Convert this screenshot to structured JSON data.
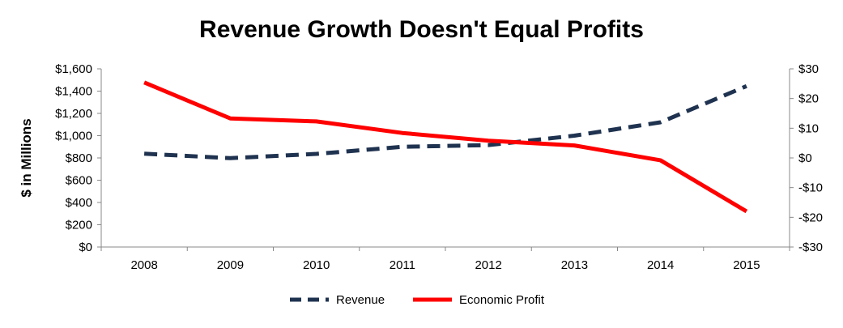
{
  "chart_data": {
    "type": "line",
    "title": "Revenue Growth Doesn't Equal Profits",
    "xlabel": "",
    "ylabel": "$ in Millions",
    "categories": [
      "2008",
      "2009",
      "2010",
      "2011",
      "2012",
      "2013",
      "2014",
      "2015"
    ],
    "y_left": {
      "ylim": [
        0,
        1600
      ],
      "ticks": [
        0,
        200,
        400,
        600,
        800,
        1000,
        1200,
        1400,
        1600
      ],
      "tick_labels": [
        "$0",
        "$200",
        "$400",
        "$600",
        "$800",
        "$1,000",
        "$1,200",
        "$1,400",
        "$1,600"
      ]
    },
    "y_right": {
      "ylim": [
        -30,
        30
      ],
      "ticks": [
        -30,
        -20,
        -10,
        0,
        10,
        20,
        30
      ],
      "tick_labels": [
        "-$30",
        "-$20",
        "-$10",
        "$0",
        "$10",
        "$20",
        "$30"
      ]
    },
    "series": [
      {
        "name": "Revenue",
        "axis": "left",
        "style": "dashed",
        "color": "#1f3350",
        "values": [
          838,
          798,
          836,
          900,
          915,
          1000,
          1120,
          1445
        ]
      },
      {
        "name": "Economic Profit",
        "axis": "right",
        "style": "solid",
        "color": "#ff0000",
        "values": [
          25.4,
          13.3,
          12.3,
          8.4,
          5.8,
          4.2,
          -0.8,
          -18.0
        ]
      }
    ],
    "legend_position": "bottom-center",
    "grid": false
  }
}
